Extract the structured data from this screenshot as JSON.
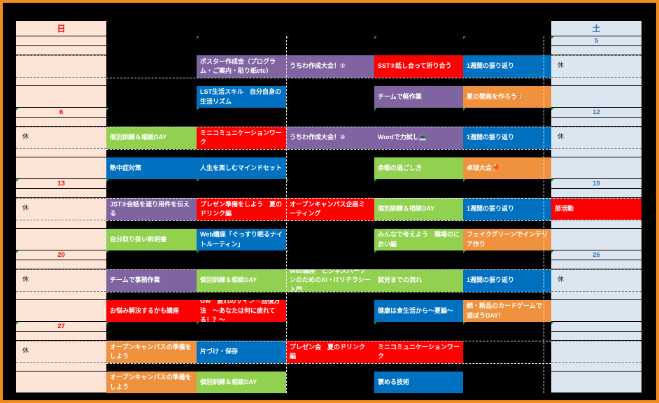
{
  "header": {
    "sunday": "日",
    "saturday": "土"
  },
  "colors": {
    "frame": "#F28B1D",
    "sunday_bg": "#FCE4D6",
    "saturday_bg": "#DCE6F1",
    "sunday_text": "#FF0000",
    "saturday_text": "#2E75B6",
    "purple": "#8064A2",
    "blue": "#0070C0",
    "green": "#92D050",
    "red": "#FF0000",
    "orange": "#F0913E",
    "flag_green": "#1E9C1E"
  },
  "weeks": [
    {
      "sun_date": "",
      "sat_date": "5",
      "row1": {
        "tue": {
          "color": "purple",
          "text": "ポスター作成会（プログラム・ご案内・貼り紙etc）"
        },
        "wed": {
          "color": "purple",
          "text": "うちわ作成大会！①"
        },
        "thu": {
          "color": "red",
          "text": "SST②話し合って折り合う"
        },
        "fri": {
          "color": "blue",
          "text": "1週間の振り返り"
        },
        "sat": {
          "note": "休"
        }
      },
      "row2": {
        "tue": {
          "color": "blue",
          "text": "LST生活スキル　自分自身の生活リズム"
        },
        "thu": {
          "color": "purple",
          "text": "チームで軽作業"
        },
        "fri": {
          "color": "orange",
          "text": "夏の壁画を作ろう🎨"
        }
      }
    },
    {
      "sun_date": "6",
      "sat_date": "12",
      "row1": {
        "sun": {
          "note": "休"
        },
        "mon": {
          "color": "green",
          "text": "個別訓練＆相談DAY"
        },
        "tue": {
          "color": "red",
          "text": "ミニコミュニケーションワーク"
        },
        "wed": {
          "color": "purple",
          "text": "うちわ作成大会！②"
        },
        "thu": {
          "color": "purple",
          "text": "Wordで力試し💻"
        },
        "fri": {
          "color": "blue",
          "text": "1週間の振り返り"
        },
        "sat": {
          "note": "休"
        }
      },
      "row2": {
        "mon": {
          "color": "blue",
          "text": "熱中症対策"
        },
        "tue": {
          "color": "blue",
          "text": "人生を楽しむマインドセット"
        },
        "thu": {
          "color": "green",
          "text": "余暇の過ごし方"
        },
        "fri": {
          "color": "orange",
          "text": "卓球大会🏓"
        }
      }
    },
    {
      "sun_date": "13",
      "sat_date": "19",
      "row1": {
        "sun": {
          "note": "休"
        },
        "mon": {
          "color": "purple",
          "text": "JST③会話を遮り用件を伝える"
        },
        "tue": {
          "color": "red",
          "text": "プレゼン準備をしよう　夏のドリンク編"
        },
        "wed": {
          "color": "red",
          "text": "オープンキャンパス企画ミーティング"
        },
        "thu": {
          "color": "green",
          "text": "個別訓練＆相談DAY"
        },
        "fri": {
          "color": "blue",
          "text": "1週間の振り返り"
        },
        "sat": {
          "color": "red",
          "text": "部活動"
        }
      },
      "row2": {
        "mon": {
          "color": "green",
          "text": "自分取り扱い説明書"
        },
        "tue": {
          "color": "blue",
          "text": "Web講座「ぐっすり眠るナイトルーティン」"
        },
        "thu": {
          "color": "green",
          "text": "みんなで考えよう　職場のにおい編"
        },
        "fri": {
          "color": "orange",
          "text": "フェイクグリーンでインテリア作り"
        }
      }
    },
    {
      "sun_date": "20",
      "sat_date": "26",
      "row1": {
        "sun": {
          "note": "休"
        },
        "mon": {
          "color": "purple",
          "text": "チームで事務作業"
        },
        "tue": {
          "color": "green",
          "text": "個別訓練＆相談DAY"
        },
        "wed": {
          "color": "green",
          "text": "Web講座　ビジネスパーソンのためのAI・ITリテラシー入門"
        },
        "thu": {
          "color": "green",
          "text": "就労までの流れ"
        },
        "fri": {
          "color": "blue",
          "text": "1週間の振り返り"
        },
        "sat": {
          "note": "休"
        }
      },
      "row2": {
        "mon": {
          "color": "red",
          "text": "お悩み解決するかも講座"
        },
        "tue": {
          "color": "red",
          "text": "GW　疲れのサイン→回復方法　～あなたは何に疲れてる！？～"
        },
        "thu": {
          "color": "blue",
          "text": "健康は食生活から～夏編～"
        },
        "fri": {
          "color": "orange",
          "text": "続・新品のカードゲームで遊ぼうDAY！"
        }
      }
    },
    {
      "sun_date": "27",
      "sat_date": "",
      "row1": {
        "sun": {
          "note": "休"
        },
        "mon": {
          "color": "orange",
          "text": "オープンキャンパスの準備をしよう"
        },
        "tue": {
          "color": "blue",
          "text": "片づけ・保存"
        },
        "wed": {
          "color": "red",
          "text": "プレゼン会　夏のドリンク編"
        },
        "thu": {
          "color": "red",
          "text": "ミニコミュニケーションワーク"
        }
      },
      "row2": {
        "mon": {
          "color": "orange",
          "text": "オープンキャンパスの準備をしよう"
        },
        "tue": {
          "color": "green",
          "text": "個別訓練＆相談DAY"
        },
        "thu": {
          "color": "blue",
          "text": "褒める技術"
        }
      }
    }
  ],
  "date_row_flag_columns": [
    [
      2,
      3,
      4,
      5,
      6
    ],
    [
      0,
      1,
      2,
      3,
      4,
      5,
      6
    ],
    [
      0,
      1,
      2,
      3,
      4,
      5,
      6
    ],
    [
      0,
      1,
      2,
      3,
      4,
      5,
      6
    ],
    [
      0,
      1,
      2,
      3,
      4,
      5,
      6
    ]
  ]
}
